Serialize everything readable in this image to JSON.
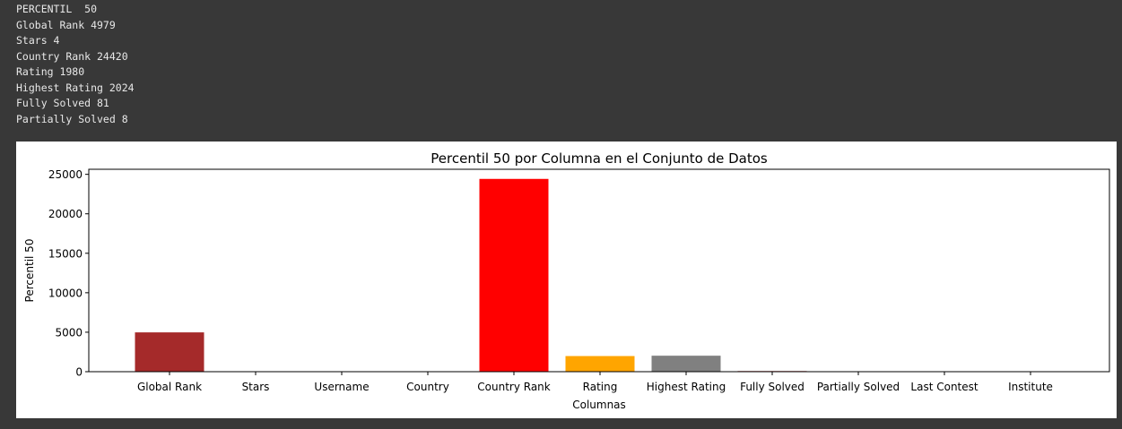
{
  "output_lines": [
    "PERCENTIL  50",
    "Global Rank 4979",
    "Stars 4",
    "Country Rank 24420",
    "Rating 1980",
    "Highest Rating 2024",
    "Fully Solved 81",
    "Partially Solved 8"
  ],
  "chart_data": {
    "type": "bar",
    "title": "Percentil 50 por Columna en el Conjunto de Datos",
    "xlabel": "Columnas",
    "ylabel": "Percentil 50",
    "categories": [
      "Global Rank",
      "Stars",
      "Username",
      "Country",
      "Country Rank",
      "Rating",
      "Highest Rating",
      "Fully Solved",
      "Partially Solved",
      "Last Contest",
      "Institute"
    ],
    "values": [
      4979,
      4,
      0,
      0,
      24420,
      1980,
      2024,
      81,
      8,
      0,
      0
    ],
    "colors": [
      "#a52a2a",
      "#a52a2a",
      "#a52a2a",
      "#a52a2a",
      "#ff0000",
      "#ffa500",
      "#808080",
      "#a52a2a",
      "#a52a2a",
      "#a52a2a",
      "#a52a2a"
    ],
    "ylim": [
      0,
      25641
    ],
    "yticks": [
      0,
      5000,
      10000,
      15000,
      20000,
      25000
    ],
    "grid": false
  }
}
